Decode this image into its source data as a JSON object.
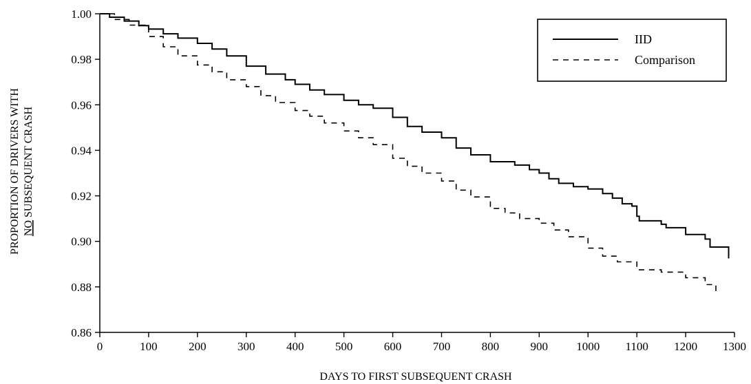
{
  "chart_data": {
    "type": "line",
    "title": "",
    "xlabel": "DAYS TO FIRST SUBSEQUENT CRASH",
    "ylabel_line1": "PROPORTION OF DRIVERS WITH",
    "ylabel_line2_underlined": "NO",
    "ylabel_line2_rest": " SUBSEQUENT CRASH",
    "xlim": [
      0,
      1300
    ],
    "ylim": [
      0.86,
      1.0
    ],
    "x_ticks": [
      0,
      100,
      200,
      300,
      400,
      500,
      600,
      700,
      800,
      900,
      1000,
      1100,
      1200,
      1300
    ],
    "y_ticks": [
      0.86,
      0.88,
      0.9,
      0.92,
      0.94,
      0.96,
      0.98,
      1.0
    ],
    "y_tick_labels": [
      "0.86",
      "0.88",
      "0.90",
      "0.92",
      "0.94",
      "0.96",
      "0.98",
      "1.00"
    ],
    "x_tick_labels": [
      "0",
      "100",
      "200",
      "300",
      "400",
      "500",
      "600",
      "700",
      "800",
      "900",
      "1000",
      "1100",
      "1200",
      "1300"
    ],
    "grid": false,
    "legend_position": "top-right",
    "series": [
      {
        "name": "IID",
        "style": "solid",
        "points": [
          [
            0,
            1.0
          ],
          [
            20,
            0.9985
          ],
          [
            50,
            0.9968
          ],
          [
            80,
            0.9948
          ],
          [
            100,
            0.9933
          ],
          [
            130,
            0.9912
          ],
          [
            160,
            0.9893
          ],
          [
            200,
            0.987
          ],
          [
            230,
            0.9845
          ],
          [
            260,
            0.9815
          ],
          [
            300,
            0.977
          ],
          [
            340,
            0.9735
          ],
          [
            380,
            0.971
          ],
          [
            400,
            0.969
          ],
          [
            430,
            0.9665
          ],
          [
            460,
            0.9645
          ],
          [
            500,
            0.962
          ],
          [
            530,
            0.96
          ],
          [
            560,
            0.9585
          ],
          [
            600,
            0.9545
          ],
          [
            630,
            0.9505
          ],
          [
            660,
            0.948
          ],
          [
            700,
            0.9455
          ],
          [
            730,
            0.941
          ],
          [
            760,
            0.938
          ],
          [
            800,
            0.935
          ],
          [
            850,
            0.9335
          ],
          [
            880,
            0.9315
          ],
          [
            900,
            0.93
          ],
          [
            920,
            0.9275
          ],
          [
            940,
            0.9255
          ],
          [
            970,
            0.924
          ],
          [
            1000,
            0.923
          ],
          [
            1030,
            0.921
          ],
          [
            1050,
            0.919
          ],
          [
            1070,
            0.9165
          ],
          [
            1090,
            0.9155
          ],
          [
            1100,
            0.911
          ],
          [
            1105,
            0.909
          ],
          [
            1150,
            0.9075
          ],
          [
            1160,
            0.906
          ],
          [
            1200,
            0.903
          ],
          [
            1240,
            0.901
          ],
          [
            1250,
            0.8975
          ],
          [
            1288,
            0.8925
          ]
        ]
      },
      {
        "name": "Comparison",
        "style": "dashed",
        "points": [
          [
            0,
            1.0
          ],
          [
            30,
            0.9975
          ],
          [
            60,
            0.995
          ],
          [
            100,
            0.99
          ],
          [
            130,
            0.9855
          ],
          [
            160,
            0.9815
          ],
          [
            200,
            0.9775
          ],
          [
            230,
            0.9745
          ],
          [
            260,
            0.971
          ],
          [
            300,
            0.968
          ],
          [
            330,
            0.964
          ],
          [
            360,
            0.961
          ],
          [
            400,
            0.9575
          ],
          [
            430,
            0.955
          ],
          [
            460,
            0.952
          ],
          [
            500,
            0.9485
          ],
          [
            530,
            0.9455
          ],
          [
            560,
            0.9425
          ],
          [
            600,
            0.9365
          ],
          [
            630,
            0.933
          ],
          [
            660,
            0.93
          ],
          [
            700,
            0.9265
          ],
          [
            730,
            0.9225
          ],
          [
            760,
            0.9195
          ],
          [
            800,
            0.9145
          ],
          [
            830,
            0.9125
          ],
          [
            860,
            0.91
          ],
          [
            900,
            0.908
          ],
          [
            930,
            0.905
          ],
          [
            960,
            0.902
          ],
          [
            1000,
            0.897
          ],
          [
            1030,
            0.8935
          ],
          [
            1060,
            0.891
          ],
          [
            1100,
            0.8875
          ],
          [
            1150,
            0.8865
          ],
          [
            1200,
            0.884
          ],
          [
            1240,
            0.881
          ],
          [
            1262,
            0.878
          ]
        ]
      }
    ]
  }
}
